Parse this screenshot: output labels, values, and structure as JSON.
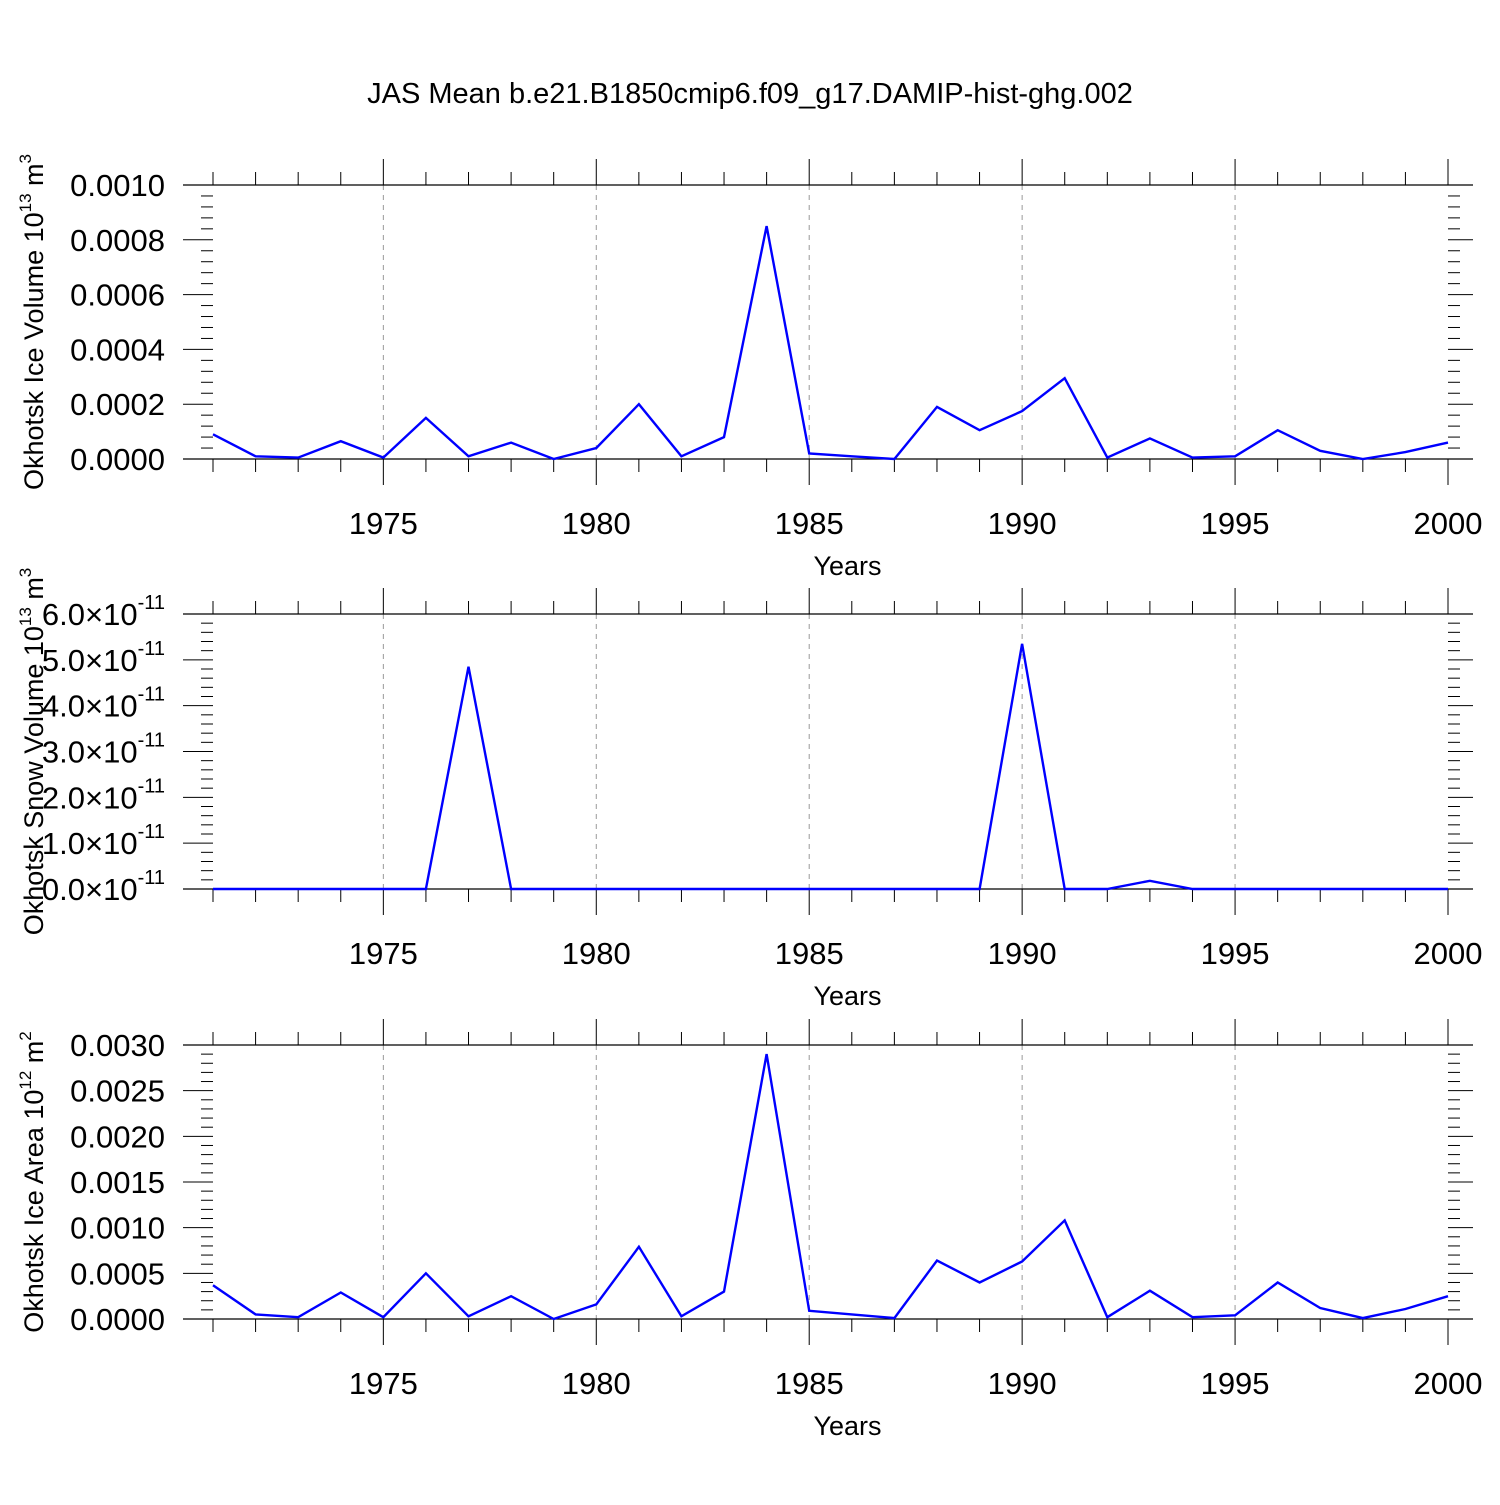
{
  "figure_title": "JAS Mean b.e21.B1850cmip6.f09_g17.DAMIP-hist-ghg.002",
  "colors": {
    "series": "#0000ff",
    "axis": "#000000",
    "grid": "#999999"
  },
  "chart_data": [
    {
      "type": "line",
      "xlabel": "Years",
      "ylabel": {
        "text": "Okhotsk Ice Volume 10",
        "sup": "13",
        "unit": " m",
        "unit_sup": "3"
      },
      "xlim": [
        1971,
        2000
      ],
      "xticks": [
        1975,
        1980,
        1985,
        1990,
        1995,
        2000
      ],
      "ylim": [
        0,
        0.001
      ],
      "yticks": [
        0,
        0.0002,
        0.0004,
        0.0006,
        0.0008,
        0.001
      ],
      "ytick_labels": [
        "0.0000",
        "0.0002",
        "0.0004",
        "0.0006",
        "0.0008",
        "0.0010"
      ],
      "grid": "vertical dashed at major x ticks",
      "x": [
        1971,
        1972,
        1973,
        1974,
        1975,
        1976,
        1977,
        1978,
        1979,
        1980,
        1981,
        1982,
        1983,
        1984,
        1985,
        1986,
        1987,
        1988,
        1989,
        1990,
        1991,
        1992,
        1993,
        1994,
        1995,
        1996,
        1997,
        1998,
        1999,
        2000
      ],
      "values": [
        9e-05,
        1e-05,
        5e-06,
        6.5e-05,
        5e-06,
        0.00015,
        1e-05,
        6e-05,
        0.0,
        4e-05,
        0.0002,
        1e-05,
        8e-05,
        0.00085,
        2e-05,
        1e-05,
        0.0,
        0.00019,
        0.000105,
        0.000175,
        0.000295,
        5e-06,
        7.5e-05,
        5e-06,
        1e-05,
        0.000105,
        3e-05,
        0.0,
        2.5e-05,
        6e-05
      ]
    },
    {
      "type": "line",
      "xlabel": "Years",
      "ylabel": {
        "text": "Okhotsk Snow Volume 10",
        "sup": "13",
        "unit": " m",
        "unit_sup": "3"
      },
      "xlim": [
        1971,
        2000
      ],
      "xticks": [
        1975,
        1980,
        1985,
        1990,
        1995,
        2000
      ],
      "ylim": [
        0,
        6e-11
      ],
      "yticks": [
        0,
        1e-11,
        2e-11,
        3e-11,
        4e-11,
        5e-11,
        6e-11
      ],
      "ytick_labels": [
        "0.0",
        "1.0",
        "2.0",
        "3.0",
        "4.0",
        "5.0",
        "6.0"
      ],
      "ytick_multiplier": {
        "base": "10",
        "exp": "-11"
      },
      "grid": "vertical dashed at major x ticks",
      "x": [
        1971,
        1972,
        1973,
        1974,
        1975,
        1976,
        1977,
        1978,
        1979,
        1980,
        1981,
        1982,
        1983,
        1984,
        1985,
        1986,
        1987,
        1988,
        1989,
        1990,
        1991,
        1992,
        1993,
        1994,
        1995,
        1996,
        1997,
        1998,
        1999,
        2000
      ],
      "values": [
        0,
        0,
        0,
        0,
        0,
        0,
        4.85e-11,
        0,
        0,
        0,
        0,
        0,
        0,
        0,
        0,
        0,
        0,
        0,
        0,
        5.35e-11,
        0,
        0,
        1.8e-12,
        0,
        0,
        0,
        0,
        0,
        0,
        0
      ]
    },
    {
      "type": "line",
      "xlabel": "Years",
      "ylabel": {
        "text": "Okhotsk Ice Area 10",
        "sup": "12",
        "unit": " m",
        "unit_sup": "2"
      },
      "xlim": [
        1971,
        2000
      ],
      "xticks": [
        1975,
        1980,
        1985,
        1990,
        1995,
        2000
      ],
      "ylim": [
        0,
        0.003
      ],
      "yticks": [
        0,
        0.0005,
        0.001,
        0.0015,
        0.002,
        0.0025,
        0.003
      ],
      "ytick_labels": [
        "0.0000",
        "0.0005",
        "0.0010",
        "0.0015",
        "0.0020",
        "0.0025",
        "0.0030"
      ],
      "grid": "vertical dashed at major x ticks",
      "x": [
        1971,
        1972,
        1973,
        1974,
        1975,
        1976,
        1977,
        1978,
        1979,
        1980,
        1981,
        1982,
        1983,
        1984,
        1985,
        1986,
        1987,
        1988,
        1989,
        1990,
        1991,
        1992,
        1993,
        1994,
        1995,
        1996,
        1997,
        1998,
        1999,
        2000
      ],
      "values": [
        0.00037,
        5e-05,
        2e-05,
        0.00029,
        2e-05,
        0.0005,
        3e-05,
        0.00025,
        0.0,
        0.00016,
        0.00079,
        3e-05,
        0.0003,
        0.0029,
        9e-05,
        5e-05,
        1e-05,
        0.00064,
        0.0004,
        0.00063,
        0.00108,
        2e-05,
        0.00031,
        2e-05,
        4e-05,
        0.0004,
        0.00012,
        1e-05,
        0.00011,
        0.00025
      ]
    }
  ]
}
